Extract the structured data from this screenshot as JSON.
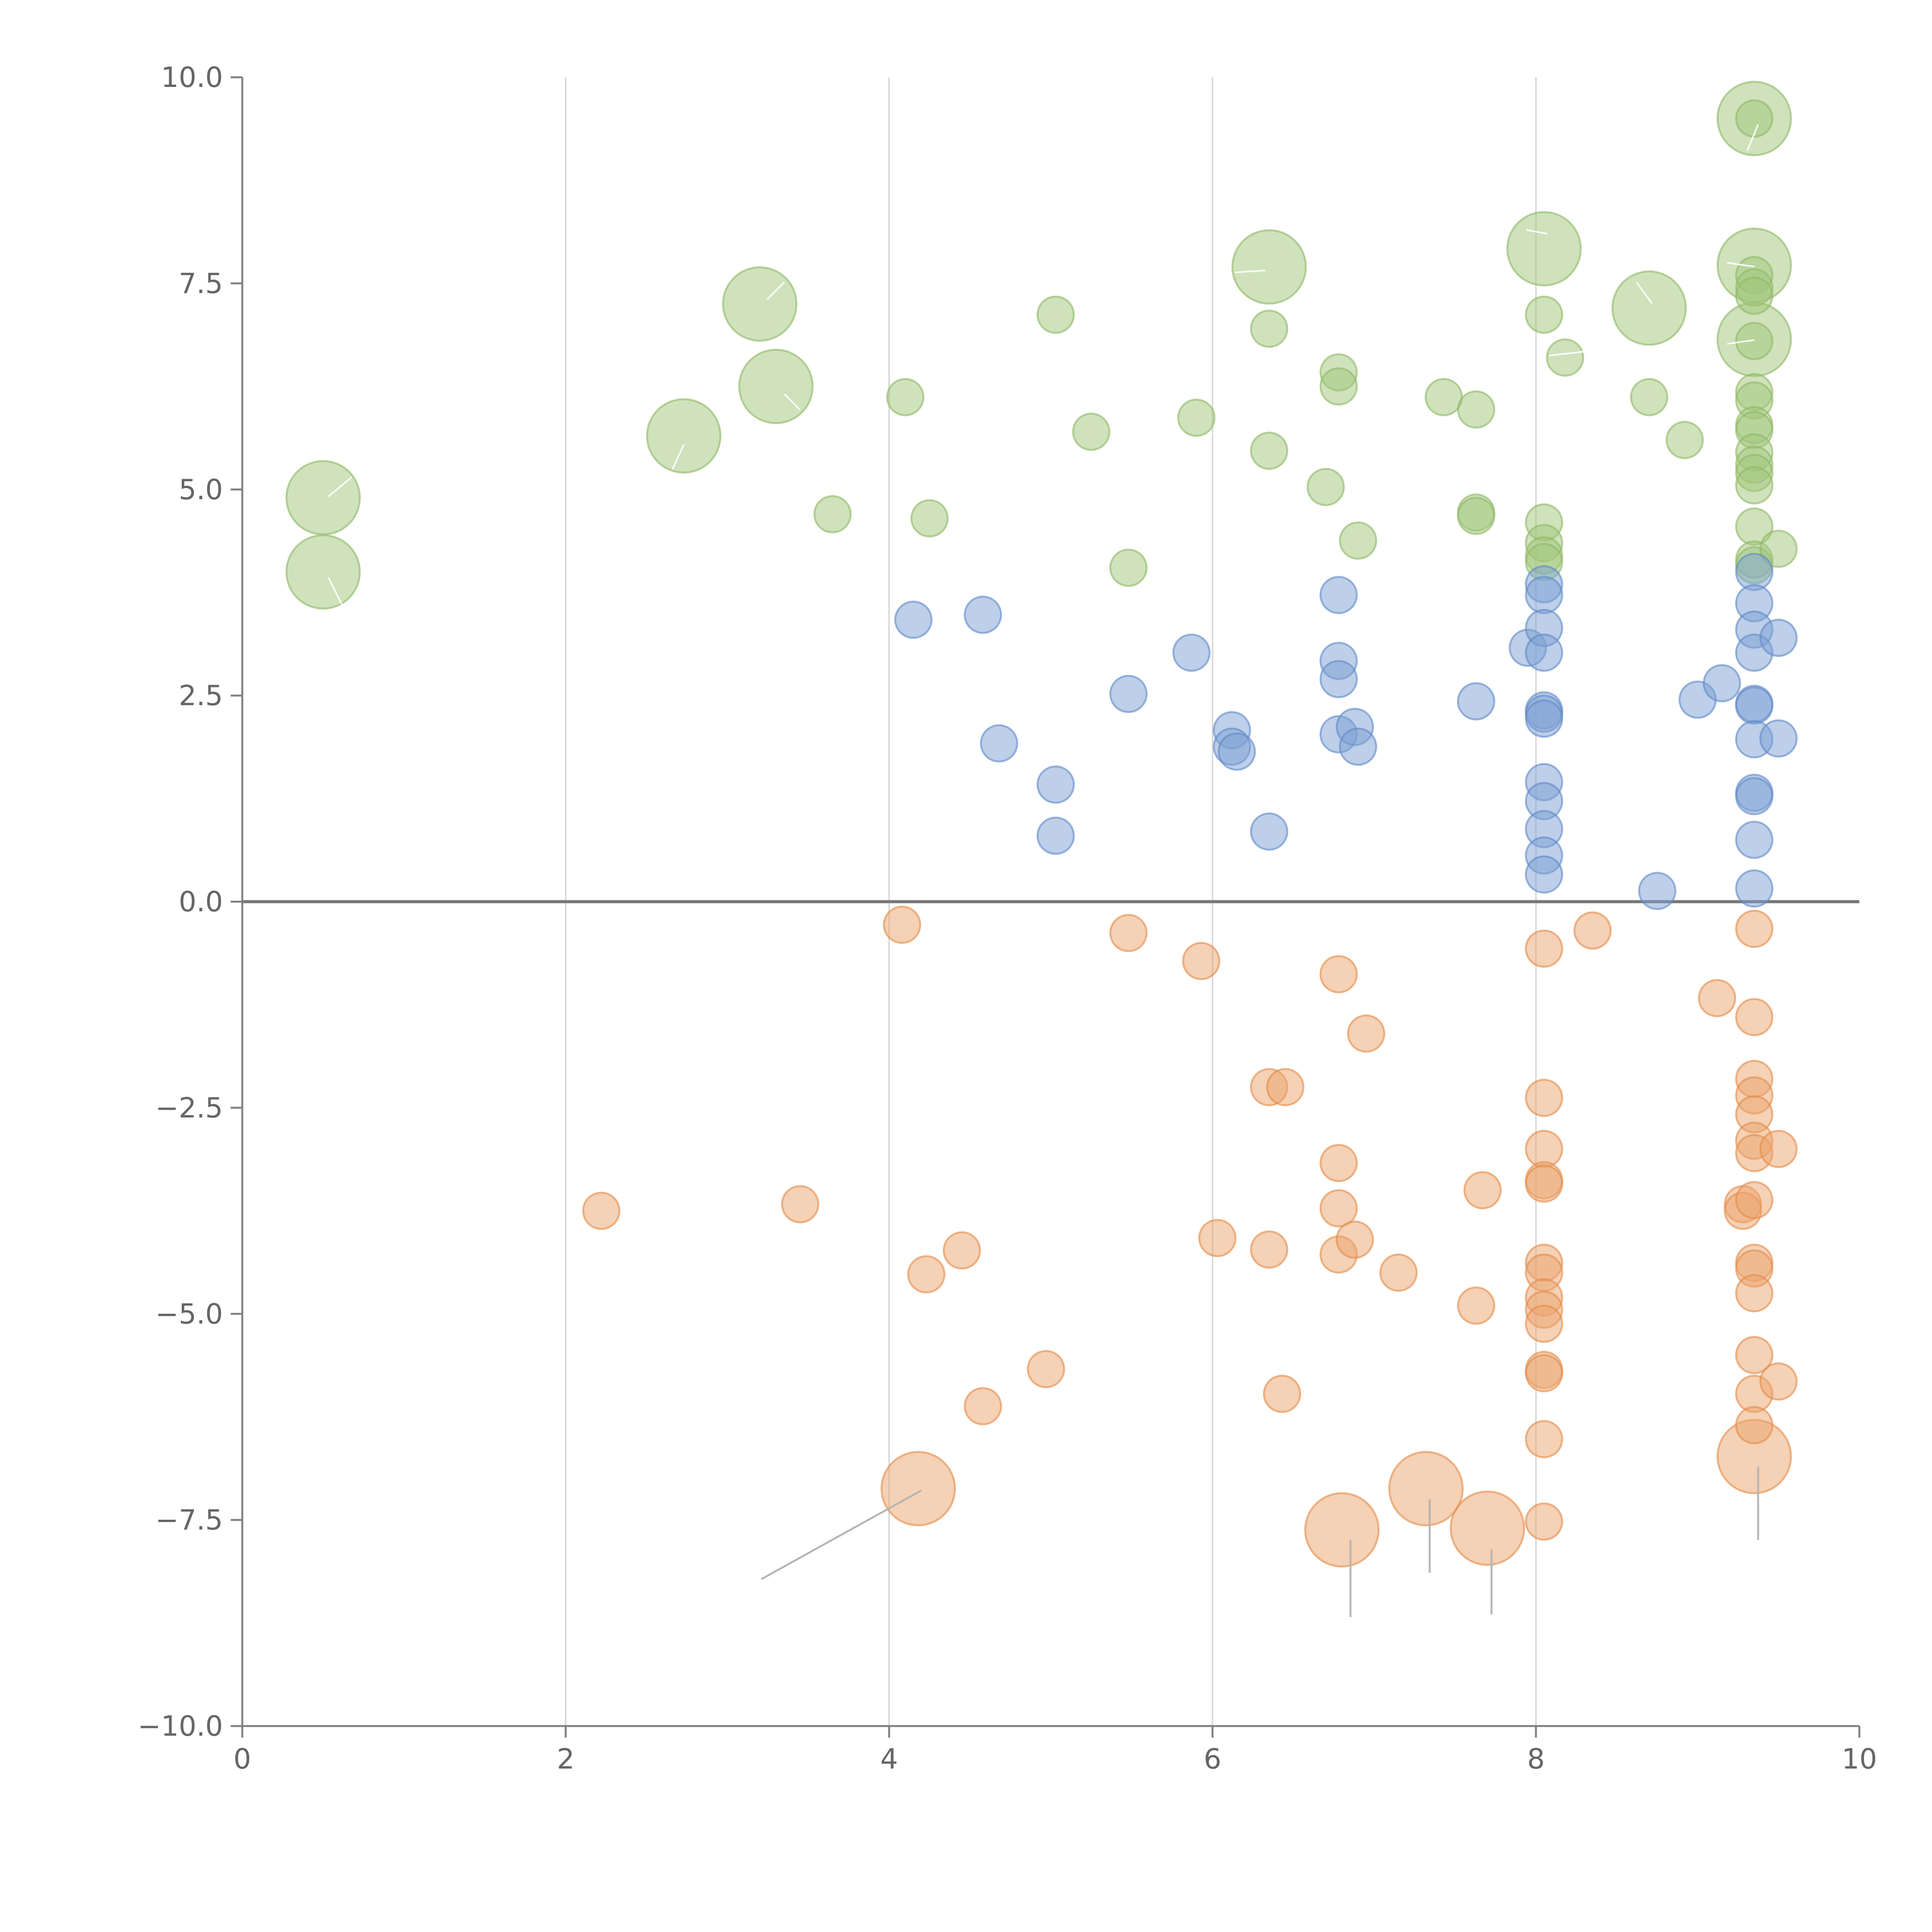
{
  "chart_data": {
    "type": "scatter",
    "title": "",
    "xlabel": "",
    "ylabel": "",
    "xlim": [
      0,
      10
    ],
    "ylim": [
      -10,
      10
    ],
    "xticks": [
      "0",
      "2",
      "4",
      "6",
      "8",
      "10"
    ],
    "yticks": [
      "10.0",
      "7.5",
      "5.0",
      "2.5",
      "0.0",
      "−2.5",
      "−5.0",
      "−7.5",
      "−10.0"
    ],
    "grid": "vertical",
    "colors": {
      "green": "#9fc57a",
      "green_stroke": "#8fb864",
      "blue": "#7b9fd3",
      "blue_stroke": "#5f88c8",
      "orange": "#eba46b",
      "orange_stroke": "#e38b47"
    },
    "series": [
      {
        "color": "green",
        "points": [
          [
            0.5,
            4.9,
            3
          ],
          [
            0.5,
            4.0,
            3
          ],
          [
            2.73,
            5.65,
            3
          ],
          [
            3.2,
            7.25,
            3
          ],
          [
            3.3,
            6.25,
            3
          ],
          [
            3.65,
            4.7,
            1
          ],
          [
            4.1,
            6.12,
            1
          ],
          [
            4.25,
            4.65,
            1
          ],
          [
            5.03,
            7.12,
            1
          ],
          [
            5.25,
            5.7,
            1
          ],
          [
            5.48,
            4.05,
            1
          ],
          [
            5.9,
            5.87,
            1
          ],
          [
            6.35,
            7.7,
            3
          ],
          [
            6.35,
            6.95,
            1
          ],
          [
            6.35,
            5.47,
            1
          ],
          [
            6.7,
            5.03,
            1
          ],
          [
            6.78,
            6.42,
            1
          ],
          [
            6.78,
            6.25,
            1
          ],
          [
            6.9,
            4.38,
            1
          ],
          [
            7.43,
            6.12,
            1
          ],
          [
            7.63,
            4.72,
            1
          ],
          [
            7.63,
            4.68,
            1
          ],
          [
            7.63,
            5.97,
            1
          ],
          [
            8.05,
            7.92,
            3
          ],
          [
            8.05,
            7.12,
            1
          ],
          [
            8.05,
            4.6,
            1
          ],
          [
            8.05,
            4.35,
            1
          ],
          [
            8.05,
            4.2,
            1
          ],
          [
            8.05,
            4.12,
            1
          ],
          [
            8.18,
            6.6,
            1
          ],
          [
            8.7,
            7.2,
            3
          ],
          [
            8.7,
            6.12,
            1
          ],
          [
            8.92,
            5.6,
            1
          ],
          [
            9.35,
            9.5,
            3
          ],
          [
            9.35,
            9.5,
            1
          ],
          [
            9.35,
            7.72,
            3
          ],
          [
            9.35,
            7.6,
            1
          ],
          [
            9.35,
            7.45,
            1
          ],
          [
            9.35,
            7.35,
            1
          ],
          [
            9.35,
            6.82,
            3
          ],
          [
            9.35,
            6.8,
            1
          ],
          [
            9.35,
            6.18,
            1
          ],
          [
            9.35,
            6.08,
            1
          ],
          [
            9.35,
            5.78,
            1
          ],
          [
            9.35,
            5.72,
            1
          ],
          [
            9.35,
            5.45,
            1
          ],
          [
            9.35,
            5.3,
            1
          ],
          [
            9.35,
            5.2,
            1
          ],
          [
            9.35,
            5.05,
            1
          ],
          [
            9.35,
            4.55,
            1
          ],
          [
            9.35,
            4.15,
            1
          ],
          [
            9.35,
            4.08,
            1
          ],
          [
            9.5,
            4.28,
            1
          ]
        ]
      },
      {
        "color": "blue",
        "points": [
          [
            4.15,
            3.42,
            1
          ],
          [
            4.58,
            3.48,
            1
          ],
          [
            4.68,
            1.92,
            1
          ],
          [
            5.03,
            1.42,
            1
          ],
          [
            5.03,
            0.8,
            1
          ],
          [
            5.48,
            2.52,
            1
          ],
          [
            5.87,
            3.02,
            1
          ],
          [
            6.12,
            2.08,
            1
          ],
          [
            6.12,
            1.88,
            1
          ],
          [
            6.15,
            1.82,
            1
          ],
          [
            6.35,
            0.85,
            1
          ],
          [
            6.78,
            3.72,
            1
          ],
          [
            6.78,
            2.92,
            1
          ],
          [
            6.78,
            2.7,
            1
          ],
          [
            6.78,
            2.03,
            1
          ],
          [
            6.88,
            2.12,
            1
          ],
          [
            6.9,
            1.88,
            1
          ],
          [
            7.63,
            2.43,
            1
          ],
          [
            7.95,
            3.08,
            1
          ],
          [
            8.05,
            3.85,
            1
          ],
          [
            8.05,
            3.72,
            1
          ],
          [
            8.05,
            3.32,
            1
          ],
          [
            8.05,
            3.02,
            1
          ],
          [
            8.05,
            2.32,
            1
          ],
          [
            8.05,
            2.28,
            1
          ],
          [
            8.05,
            2.22,
            1
          ],
          [
            8.05,
            1.45,
            1
          ],
          [
            8.05,
            1.22,
            1
          ],
          [
            8.05,
            0.88,
            1
          ],
          [
            8.05,
            0.56,
            1
          ],
          [
            8.05,
            0.33,
            1
          ],
          [
            8.75,
            0.13,
            1
          ],
          [
            9.0,
            2.45,
            1
          ],
          [
            9.15,
            2.65,
            1
          ],
          [
            9.35,
            4.0,
            1
          ],
          [
            9.35,
            3.62,
            1
          ],
          [
            9.35,
            3.3,
            1
          ],
          [
            9.35,
            3.02,
            1
          ],
          [
            9.35,
            2.4,
            1
          ],
          [
            9.35,
            2.38,
            1
          ],
          [
            9.35,
            1.97,
            1
          ],
          [
            9.35,
            1.32,
            1
          ],
          [
            9.35,
            1.28,
            1
          ],
          [
            9.35,
            0.75,
            1
          ],
          [
            9.35,
            0.16,
            1
          ],
          [
            9.5,
            3.2,
            1
          ],
          [
            9.5,
            1.98,
            1
          ]
        ]
      },
      {
        "color": "orange",
        "points": [
          [
            2.22,
            -3.75,
            1
          ],
          [
            3.45,
            -3.67,
            1
          ],
          [
            4.08,
            -0.28,
            1
          ],
          [
            4.23,
            -4.52,
            1
          ],
          [
            4.45,
            -4.23,
            1
          ],
          [
            4.58,
            -6.12,
            1
          ],
          [
            4.97,
            -5.67,
            1
          ],
          [
            4.18,
            -7.12,
            3
          ],
          [
            5.48,
            -0.38,
            1
          ],
          [
            5.93,
            -0.72,
            1
          ],
          [
            6.03,
            -4.08,
            1
          ],
          [
            6.35,
            -2.25,
            1
          ],
          [
            6.45,
            -2.25,
            1
          ],
          [
            6.35,
            -4.22,
            1
          ],
          [
            6.43,
            -5.97,
            1
          ],
          [
            6.78,
            -0.88,
            1
          ],
          [
            6.78,
            -3.17,
            1
          ],
          [
            6.78,
            -3.72,
            1
          ],
          [
            6.78,
            -4.28,
            1
          ],
          [
            6.88,
            -4.1,
            1
          ],
          [
            6.95,
            -1.6,
            1
          ],
          [
            6.8,
            -7.62,
            3
          ],
          [
            7.15,
            -4.5,
            1
          ],
          [
            7.32,
            -7.12,
            3
          ],
          [
            7.63,
            -4.9,
            1
          ],
          [
            7.67,
            -3.5,
            1
          ],
          [
            7.7,
            -7.6,
            3
          ],
          [
            8.05,
            -0.57,
            1
          ],
          [
            8.05,
            -2.38,
            1
          ],
          [
            8.05,
            -3.0,
            1
          ],
          [
            8.05,
            -3.38,
            1
          ],
          [
            8.05,
            -3.42,
            1
          ],
          [
            8.05,
            -4.38,
            1
          ],
          [
            8.05,
            -4.5,
            1
          ],
          [
            8.05,
            -4.8,
            1
          ],
          [
            8.05,
            -4.95,
            1
          ],
          [
            8.05,
            -5.12,
            1
          ],
          [
            8.05,
            -5.68,
            1
          ],
          [
            8.05,
            -5.72,
            1
          ],
          [
            8.05,
            -6.52,
            1
          ],
          [
            8.05,
            -7.52,
            1
          ],
          [
            8.35,
            -0.35,
            1
          ],
          [
            9.12,
            -1.17,
            1
          ],
          [
            9.28,
            -3.67,
            1
          ],
          [
            9.28,
            -3.75,
            1
          ],
          [
            9.35,
            -0.33,
            1
          ],
          [
            9.35,
            -1.4,
            1
          ],
          [
            9.35,
            -2.15,
            1
          ],
          [
            9.35,
            -2.35,
            1
          ],
          [
            9.35,
            -2.58,
            1
          ],
          [
            9.35,
            -2.9,
            1
          ],
          [
            9.35,
            -3.05,
            1
          ],
          [
            9.35,
            -3.62,
            1
          ],
          [
            9.35,
            -4.38,
            1
          ],
          [
            9.35,
            -4.45,
            1
          ],
          [
            9.35,
            -4.75,
            1
          ],
          [
            9.35,
            -5.5,
            1
          ],
          [
            9.35,
            -5.97,
            1
          ],
          [
            9.35,
            -6.35,
            1
          ],
          [
            9.35,
            -6.73,
            3
          ],
          [
            9.5,
            -3.0,
            1
          ],
          [
            9.5,
            -5.82,
            1
          ]
        ]
      }
    ]
  }
}
